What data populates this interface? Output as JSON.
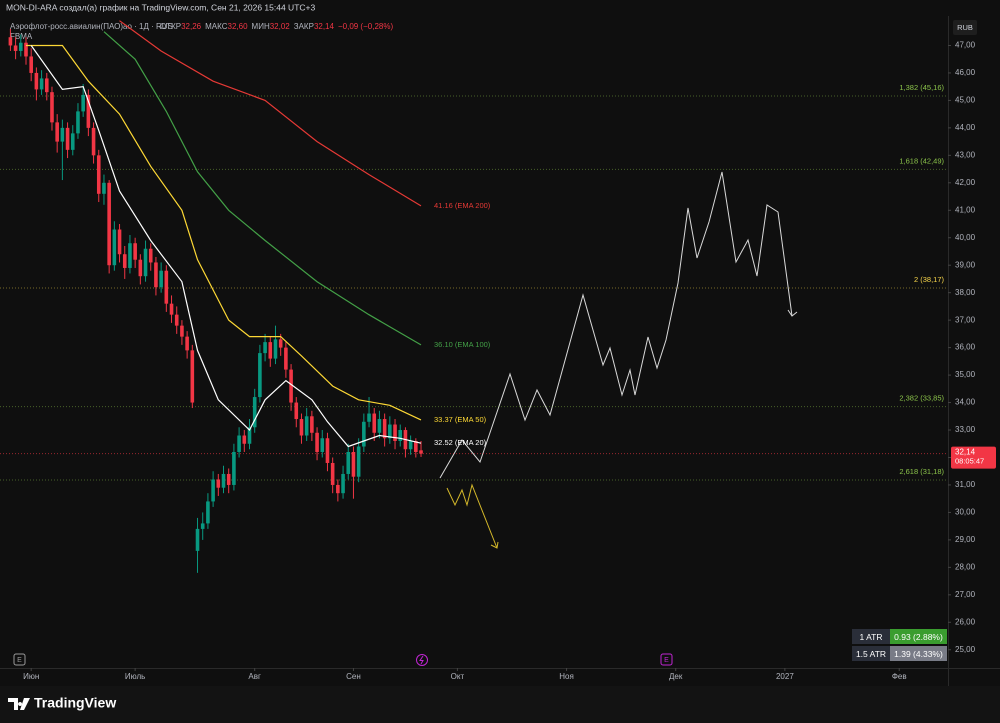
{
  "header": {
    "title": "MON-DI-ARA создал(а) график на TradingView.com, Сен 21, 2026 15:44 UTC+3"
  },
  "legend": {
    "symbol": "Аэрофлот-росс.авиалин(ПАО)ао · 1Д · RUS",
    "fields": [
      {
        "k": "ОТКР",
        "v": "32,26"
      },
      {
        "k": "МАКС",
        "v": "32,60"
      },
      {
        "k": "МИН",
        "v": "32,02"
      },
      {
        "k": "ЗАКР",
        "v": "32,14"
      }
    ],
    "change": "−0,09 (−0,28%)",
    "indicator": "FBMA"
  },
  "currency": "RUB",
  "events": [
    "E",
    "E"
  ],
  "atr_table": [
    {
      "k": "1 ATR",
      "v": "0.93 (2.88%)"
    },
    {
      "k": "1.5 ATR",
      "v": "1.39 (4.33%)"
    }
  ],
  "footer": {
    "brand": "TradingView"
  },
  "chart_data": {
    "type": "candlestick",
    "xlim": [
      -6,
      176
    ],
    "ylim": [
      24.7,
      48
    ],
    "grid": false,
    "up_color": "#089981",
    "down_color": "#f23645",
    "xticks": [
      {
        "value": 0,
        "label": "Июн"
      },
      {
        "value": 20,
        "label": "Июль"
      },
      {
        "value": 43,
        "label": "Авг"
      },
      {
        "value": 62,
        "label": "Сен"
      },
      {
        "value": 82,
        "label": "Окт"
      },
      {
        "value": 103,
        "label": "Ноя"
      },
      {
        "value": 124,
        "label": "Дек"
      },
      {
        "value": 145,
        "label": "2027"
      },
      {
        "value": 167,
        "label": "Фев"
      }
    ],
    "yticks": [
      {
        "value": 25,
        "label": "25,00"
      },
      {
        "value": 26,
        "label": "26,00"
      },
      {
        "value": 27,
        "label": "27,00"
      },
      {
        "value": 28,
        "label": "28,00"
      },
      {
        "value": 29,
        "label": "29,00"
      },
      {
        "value": 30,
        "label": "30,00"
      },
      {
        "value": 31,
        "label": "31,00"
      },
      {
        "value": 32,
        "label": "32,00"
      },
      {
        "value": 33,
        "label": "33,00"
      },
      {
        "value": 34,
        "label": "34,00"
      },
      {
        "value": 35,
        "label": "35,00"
      },
      {
        "value": 36,
        "label": "36,00"
      },
      {
        "value": 37,
        "label": "37,00"
      },
      {
        "value": 38,
        "label": "38,00"
      },
      {
        "value": 39,
        "label": "39,00"
      },
      {
        "value": 40,
        "label": "40,00"
      },
      {
        "value": 41,
        "label": "41,00"
      },
      {
        "value": 42,
        "label": "42,00"
      },
      {
        "value": 43,
        "label": "43,00"
      },
      {
        "value": 44,
        "label": "44,00"
      },
      {
        "value": 45,
        "label": "45,00"
      },
      {
        "value": 46,
        "label": "46,00"
      },
      {
        "value": 47,
        "label": "47,00"
      }
    ],
    "x": [
      -4,
      -3,
      -2,
      -1,
      0,
      1,
      2,
      3,
      4,
      5,
      6,
      7,
      8,
      9,
      10,
      11,
      12,
      13,
      14,
      15,
      16,
      17,
      18,
      19,
      20,
      21,
      22,
      23,
      24,
      25,
      26,
      27,
      28,
      29,
      30,
      31,
      32,
      33,
      34,
      35,
      36,
      37,
      38,
      39,
      40,
      41,
      42,
      43,
      44,
      45,
      46,
      47,
      48,
      49,
      50,
      51,
      52,
      53,
      54,
      55,
      56,
      57,
      58,
      59,
      60,
      61,
      62,
      63,
      64,
      65,
      66,
      67,
      68,
      69,
      70,
      71,
      72,
      73,
      74,
      75
    ],
    "ohlc": [
      [
        47.3,
        47.6,
        46.8,
        47.0
      ],
      [
        47.0,
        47.3,
        46.5,
        46.8
      ],
      [
        46.8,
        47.4,
        46.6,
        47.1
      ],
      [
        47.1,
        47.3,
        46.3,
        46.6
      ],
      [
        46.6,
        46.9,
        45.7,
        46.0
      ],
      [
        46.0,
        46.2,
        45.0,
        45.4
      ],
      [
        45.4,
        46.1,
        45.2,
        45.8
      ],
      [
        45.8,
        46.0,
        45.0,
        45.3
      ],
      [
        45.3,
        45.5,
        43.9,
        44.2
      ],
      [
        44.2,
        44.5,
        43.1,
        43.5
      ],
      [
        43.5,
        44.3,
        42.1,
        44.0
      ],
      [
        44.0,
        44.2,
        42.9,
        43.2
      ],
      [
        43.2,
        44.1,
        43.0,
        43.8
      ],
      [
        43.8,
        44.9,
        43.6,
        44.6
      ],
      [
        44.6,
        45.6,
        44.4,
        45.2
      ],
      [
        45.2,
        45.4,
        43.7,
        44.0
      ],
      [
        44.0,
        44.2,
        42.7,
        43.0
      ],
      [
        43.0,
        43.2,
        41.3,
        41.6
      ],
      [
        41.6,
        42.3,
        41.2,
        42.0
      ],
      [
        42.0,
        42.1,
        38.7,
        39.0
      ],
      [
        39.0,
        40.6,
        38.8,
        40.3
      ],
      [
        40.3,
        40.5,
        39.1,
        39.4
      ],
      [
        39.4,
        39.7,
        38.5,
        38.9
      ],
      [
        38.9,
        40.1,
        38.7,
        39.8
      ],
      [
        39.8,
        40.0,
        38.9,
        39.2
      ],
      [
        39.2,
        39.4,
        38.3,
        38.6
      ],
      [
        38.6,
        39.9,
        38.4,
        39.6
      ],
      [
        39.6,
        39.8,
        38.8,
        39.1
      ],
      [
        39.1,
        39.3,
        37.9,
        38.2
      ],
      [
        38.2,
        39.1,
        38.0,
        38.8
      ],
      [
        38.8,
        39.0,
        37.3,
        37.6
      ],
      [
        37.6,
        37.9,
        36.9,
        37.2
      ],
      [
        37.2,
        37.5,
        36.5,
        36.8
      ],
      [
        36.8,
        37.0,
        36.1,
        36.4
      ],
      [
        36.4,
        36.6,
        35.6,
        35.9
      ],
      [
        35.9,
        36.1,
        33.8,
        34.0
      ],
      [
        28.6,
        29.8,
        27.8,
        29.4
      ],
      [
        29.4,
        30.0,
        29.0,
        29.6
      ],
      [
        29.6,
        30.7,
        29.4,
        30.4
      ],
      [
        30.4,
        31.5,
        30.2,
        31.2
      ],
      [
        31.2,
        31.4,
        30.6,
        30.9
      ],
      [
        30.9,
        31.7,
        30.7,
        31.4
      ],
      [
        31.4,
        31.6,
        30.7,
        31.0
      ],
      [
        31.0,
        32.5,
        30.8,
        32.2
      ],
      [
        32.2,
        33.1,
        32.0,
        32.8
      ],
      [
        32.8,
        33.0,
        32.2,
        32.5
      ],
      [
        32.5,
        33.4,
        32.3,
        33.1
      ],
      [
        33.1,
        34.5,
        32.9,
        34.2
      ],
      [
        34.2,
        36.1,
        34.0,
        35.8
      ],
      [
        35.8,
        36.5,
        35.5,
        36.2
      ],
      [
        36.2,
        36.4,
        35.3,
        35.6
      ],
      [
        35.6,
        36.8,
        35.4,
        36.3
      ],
      [
        36.3,
        36.5,
        35.7,
        36.0
      ],
      [
        36.0,
        36.2,
        34.9,
        35.2
      ],
      [
        35.2,
        35.4,
        33.7,
        34.0
      ],
      [
        34.0,
        34.2,
        33.1,
        33.4
      ],
      [
        33.4,
        33.6,
        32.5,
        32.8
      ],
      [
        32.8,
        33.8,
        32.6,
        33.5
      ],
      [
        33.5,
        33.7,
        32.6,
        32.9
      ],
      [
        32.9,
        33.1,
        31.9,
        32.2
      ],
      [
        32.2,
        33.0,
        32.0,
        32.7
      ],
      [
        32.7,
        32.9,
        31.5,
        31.8
      ],
      [
        31.8,
        32.0,
        30.7,
        31.0
      ],
      [
        31.0,
        31.2,
        30.4,
        30.7
      ],
      [
        30.7,
        31.7,
        30.5,
        31.4
      ],
      [
        31.4,
        32.5,
        31.2,
        32.2
      ],
      [
        32.2,
        32.4,
        30.5,
        31.3
      ],
      [
        31.3,
        32.7,
        31.1,
        32.4
      ],
      [
        32.4,
        33.6,
        32.2,
        33.3
      ],
      [
        33.3,
        34.2,
        33.1,
        33.6
      ],
      [
        33.6,
        33.8,
        32.6,
        32.9
      ],
      [
        32.9,
        33.7,
        32.7,
        33.4
      ],
      [
        33.4,
        33.6,
        32.4,
        32.7
      ],
      [
        32.7,
        33.5,
        32.5,
        33.2
      ],
      [
        33.2,
        33.4,
        32.3,
        32.6
      ],
      [
        32.6,
        33.2,
        32.4,
        33.0
      ],
      [
        33.0,
        33.1,
        32.0,
        32.3
      ],
      [
        32.3,
        32.8,
        32.1,
        32.6
      ],
      [
        32.6,
        32.7,
        32.0,
        32.2
      ],
      [
        32.26,
        32.6,
        32.02,
        32.14
      ]
    ],
    "series": [
      {
        "name": "41.16 (EMA 200)",
        "color": "#e53935",
        "x": [
          17,
          25,
          35,
          45,
          55,
          65,
          75
        ],
        "values": [
          47.9,
          46.8,
          45.7,
          45.0,
          43.5,
          42.3,
          41.16
        ]
      },
      {
        "name": "36.10 (EMA 100)",
        "color": "#43a047",
        "x": [
          14,
          20,
          26,
          32,
          38,
          45,
          55,
          65,
          75
        ],
        "values": [
          47.5,
          46.5,
          44.6,
          42.4,
          41.0,
          39.9,
          38.4,
          37.2,
          36.1
        ]
      },
      {
        "name": "33.37 (EMA 50)",
        "color": "#fdd835",
        "x": [
          -1,
          6,
          11,
          17,
          23,
          29,
          32,
          38,
          42,
          48,
          52,
          58,
          63,
          69,
          75
        ],
        "values": [
          47.0,
          47.0,
          45.7,
          44.5,
          42.6,
          41.0,
          39.2,
          37.0,
          36.4,
          36.4,
          35.7,
          34.6,
          34.1,
          33.9,
          33.37
        ]
      },
      {
        "name": "32.52 (EMA 20)",
        "color": "#ffffff",
        "x": [
          0,
          6,
          10,
          13,
          17,
          23,
          29,
          32,
          36,
          42,
          45,
          49,
          54,
          57,
          61,
          64,
          67,
          71,
          75
        ],
        "values": [
          47.0,
          45.4,
          45.5,
          43.9,
          41.7,
          39.9,
          38.4,
          35.9,
          34.1,
          33.0,
          34.1,
          34.8,
          34.1,
          33.3,
          32.4,
          32.6,
          32.8,
          32.7,
          32.52
        ]
      }
    ],
    "levels": [
      {
        "value": 45.16,
        "label": "1,382 (45,16)",
        "color": "#8bc34a"
      },
      {
        "value": 42.49,
        "label": "1,618 (42,49)",
        "color": "#8bc34a"
      },
      {
        "value": 38.17,
        "label": "2 (38,17)",
        "color": "#f7d54a"
      },
      {
        "value": 33.85,
        "label": "2,382 (33,85)",
        "color": "#8bc34a"
      },
      {
        "value": 31.18,
        "label": "2,618 (31,18)",
        "color": "#8bc34a"
      }
    ],
    "last_price": {
      "value": 32.14,
      "label": "32,14",
      "countdown": "08:05:47",
      "color": "#f23645"
    }
  }
}
